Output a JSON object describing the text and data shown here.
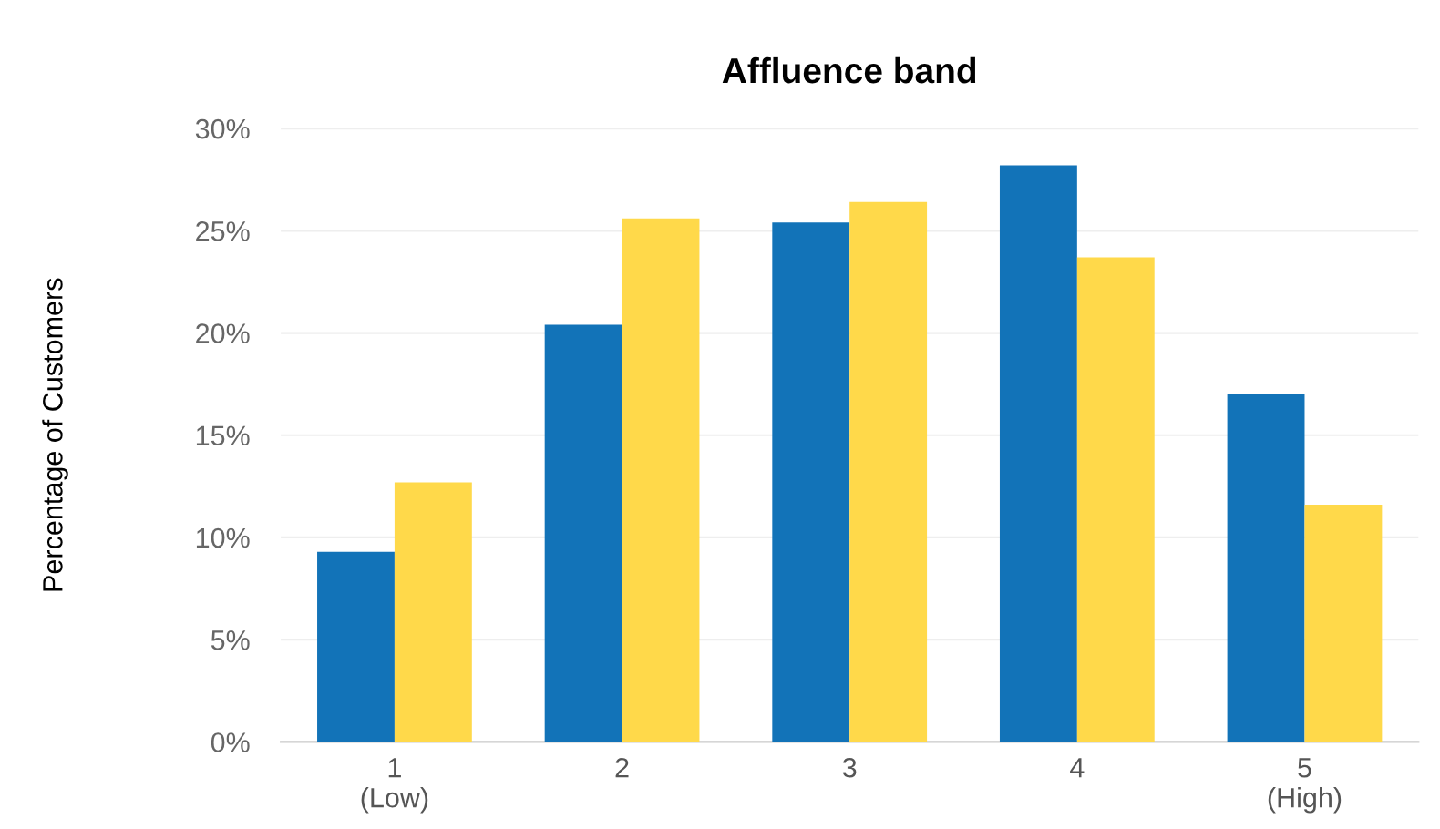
{
  "chart_data": {
    "type": "bar",
    "title": "Affluence band",
    "ylabel": "Percentage of Customers",
    "categories": [
      "1\n(Low)",
      "2",
      "3",
      "4",
      "5\n(High)"
    ],
    "series": [
      {
        "color": "#1273b8",
        "values": [
          9.3,
          20.4,
          25.4,
          28.2,
          17.0
        ]
      },
      {
        "color": "#ffd94a",
        "values": [
          12.7,
          25.6,
          26.4,
          23.7,
          11.6
        ]
      }
    ],
    "ylim": [
      0,
      30
    ],
    "yticks": [
      {
        "value": 0,
        "label": "0%"
      },
      {
        "value": 5,
        "label": "5%"
      },
      {
        "value": 10,
        "label": "10%"
      },
      {
        "value": 15,
        "label": "15%"
      },
      {
        "value": 20,
        "label": "20%"
      },
      {
        "value": 25,
        "label": "25%"
      },
      {
        "value": 30,
        "label": "30%"
      }
    ],
    "grid": "y",
    "legend": false
  }
}
